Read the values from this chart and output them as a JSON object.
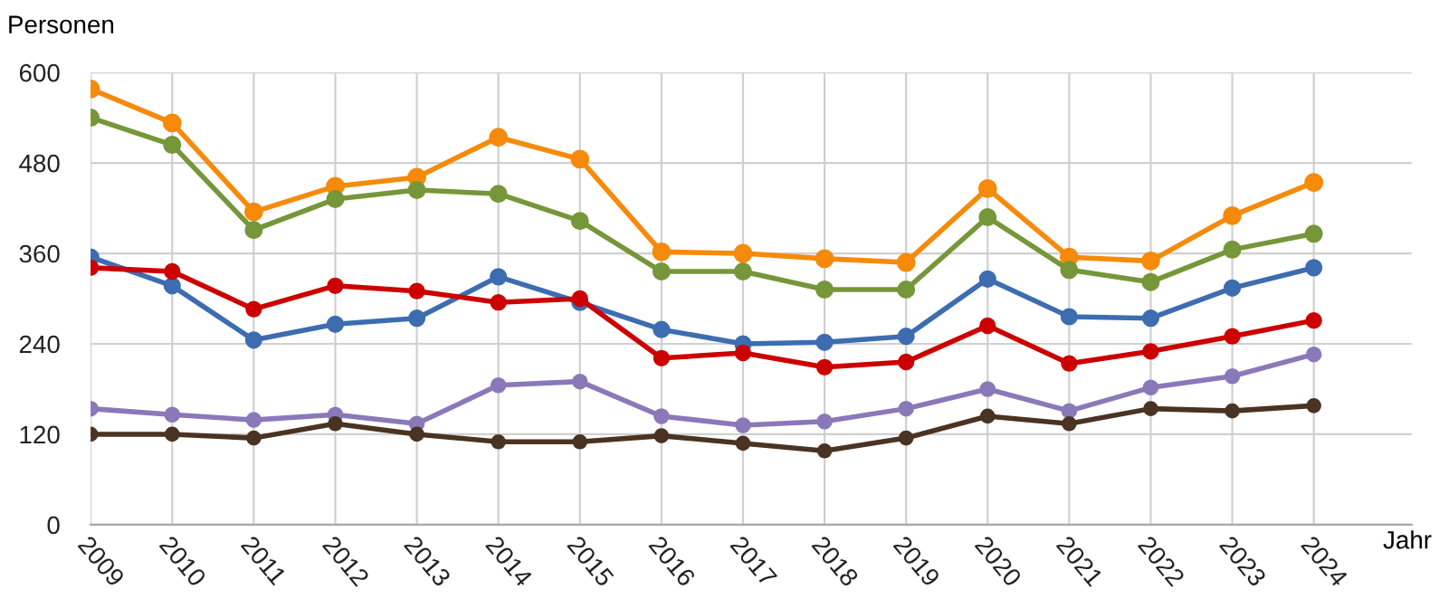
{
  "chart_data": {
    "type": "line",
    "ylabel": "Personen",
    "xlabel": "Jahr",
    "categories": [
      "2009",
      "2010",
      "2011",
      "2012",
      "2013",
      "2014",
      "2015",
      "2016",
      "2017",
      "2018",
      "2019",
      "2020",
      "2021",
      "2022",
      "2023",
      "2024"
    ],
    "series": [
      {
        "color": "#f58a0b",
        "values": [
          578,
          533,
          415,
          449,
          461,
          514,
          485,
          362,
          360,
          353,
          348,
          446,
          355,
          350,
          410,
          454
        ]
      },
      {
        "color": "#76963a",
        "values": [
          540,
          504,
          391,
          432,
          444,
          439,
          403,
          336,
          336,
          312,
          312,
          408,
          338,
          322,
          365,
          386
        ]
      },
      {
        "color": "#3d6db0",
        "values": [
          355,
          317,
          245,
          266,
          274,
          329,
          295,
          259,
          240,
          242,
          250,
          326,
          276,
          274,
          314,
          341
        ]
      },
      {
        "color": "#cc0000",
        "values": [
          341,
          336,
          286,
          317,
          310,
          295,
          300,
          221,
          228,
          209,
          216,
          264,
          214,
          230,
          250,
          271
        ]
      },
      {
        "color": "#8a79b9",
        "values": [
          154,
          146,
          139,
          146,
          134,
          185,
          190,
          144,
          132,
          137,
          154,
          180,
          151,
          182,
          197,
          226
        ]
      },
      {
        "color": "#4a3322",
        "values": [
          120,
          120,
          115,
          134,
          120,
          110,
          110,
          118,
          108,
          98,
          115,
          144,
          134,
          154,
          151,
          158
        ]
      }
    ],
    "ylim": [
      0,
      600
    ],
    "yticks": [
      0,
      120,
      240,
      360,
      480,
      600
    ],
    "grid": true,
    "marker": "circle",
    "line_style": "solid",
    "legend": false
  }
}
